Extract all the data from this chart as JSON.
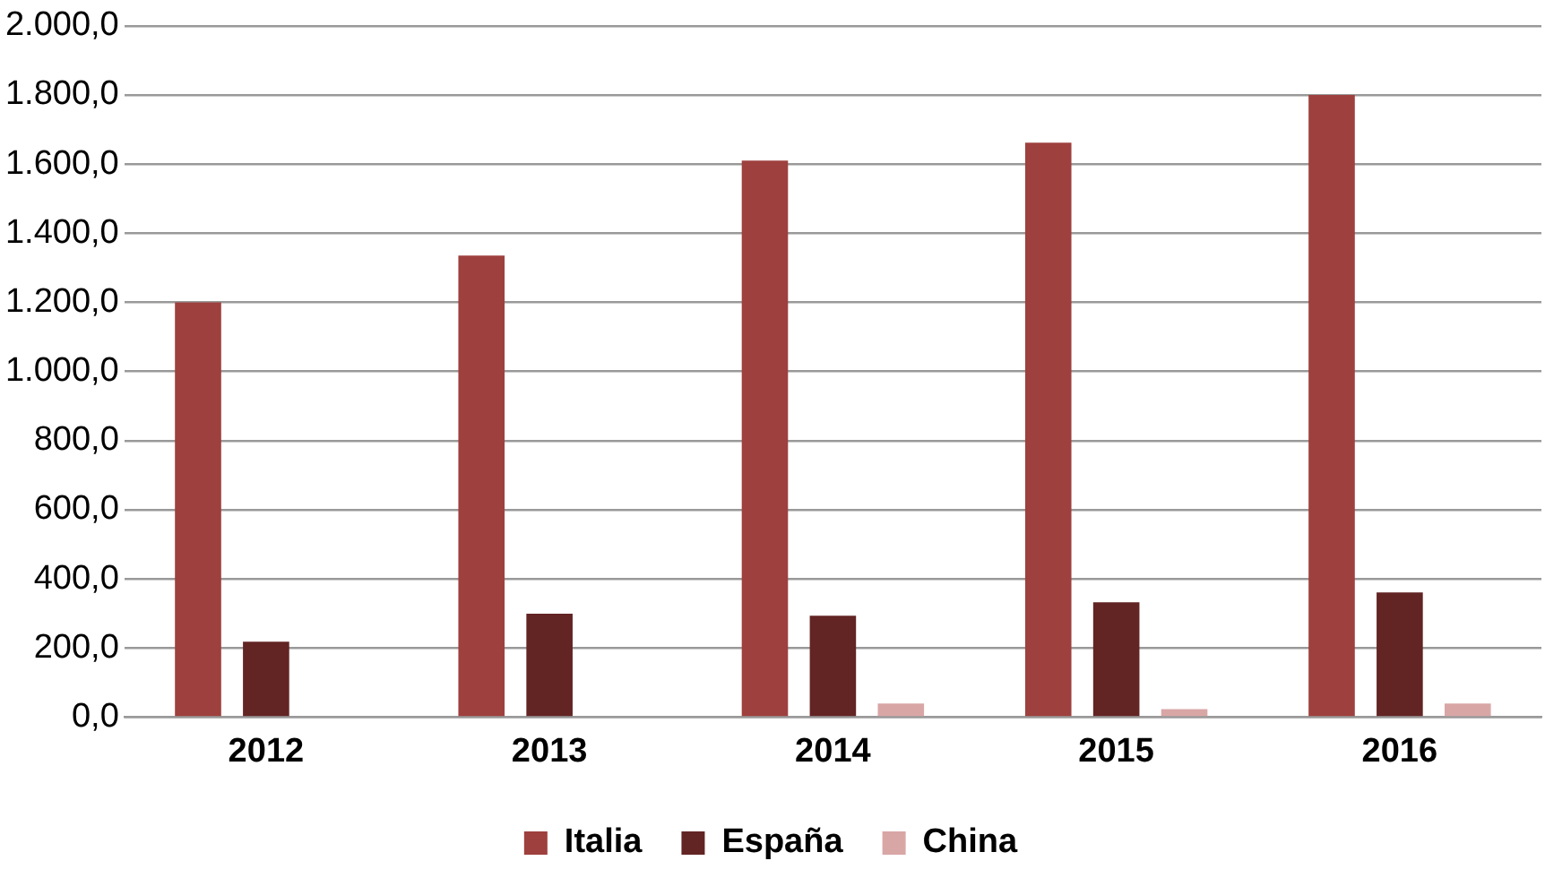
{
  "chart_data": {
    "type": "bar",
    "categories": [
      "2012",
      "2013",
      "2014",
      "2015",
      "2016"
    ],
    "series": [
      {
        "name": "Italia",
        "color": "#9e403e",
        "values": [
          1200,
          1335,
          1610,
          1662,
          1800
        ]
      },
      {
        "name": "España",
        "color": "#632424",
        "values": [
          218,
          299,
          293,
          332,
          361
        ]
      },
      {
        "name": "China",
        "color": "#d9a6a6",
        "values": [
          0,
          0,
          39,
          23,
          39
        ]
      }
    ],
    "ylim": [
      0,
      2000
    ],
    "yticks": [
      {
        "value": 0,
        "label": "0,0"
      },
      {
        "value": 200,
        "label": "200,0"
      },
      {
        "value": 400,
        "label": "400,0"
      },
      {
        "value": 600,
        "label": "600,0"
      },
      {
        "value": 800,
        "label": "800,0"
      },
      {
        "value": 1000,
        "label": "1.000,0"
      },
      {
        "value": 1200,
        "label": "1.200,0"
      },
      {
        "value": 1400,
        "label": "1.400,0"
      },
      {
        "value": 1600,
        "label": "1.600,0"
      },
      {
        "value": 1800,
        "label": "1.800,0"
      },
      {
        "value": 2000,
        "label": "2.000,0"
      }
    ],
    "grid": "y",
    "legend": "bottom"
  }
}
